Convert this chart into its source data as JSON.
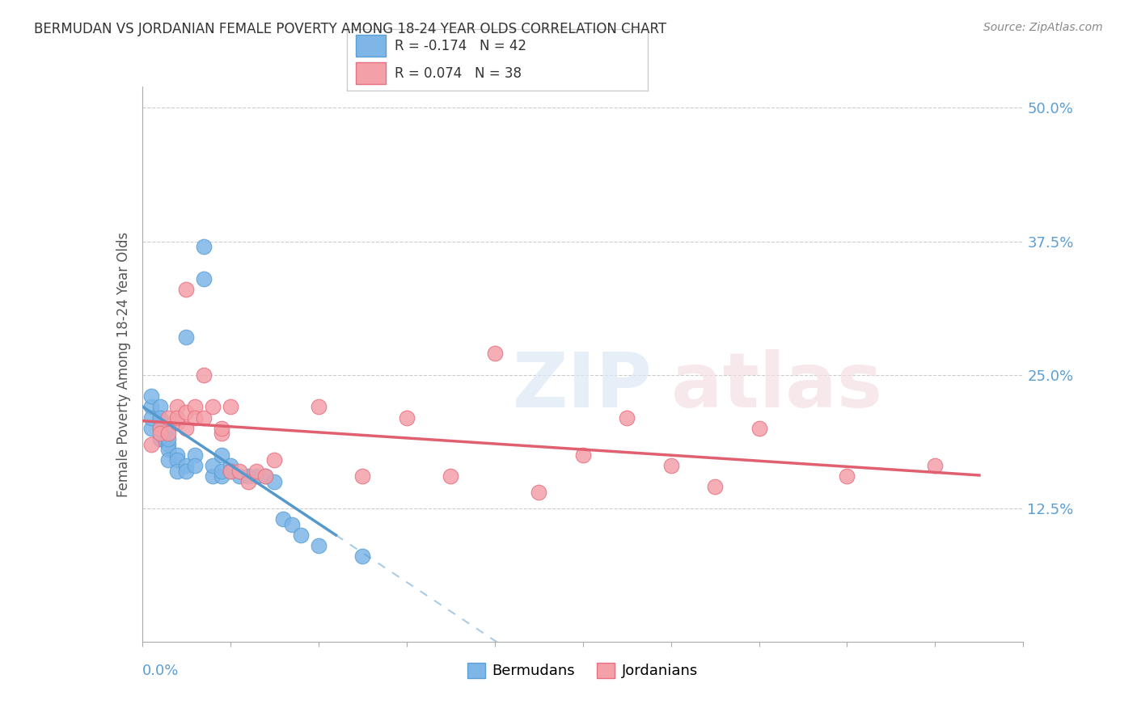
{
  "title": "BERMUDAN VS JORDANIAN FEMALE POVERTY AMONG 18-24 YEAR OLDS CORRELATION CHART",
  "source": "Source: ZipAtlas.com",
  "ylabel": "Female Poverty Among 18-24 Year Olds",
  "legend_blue_r": "R = -0.174",
  "legend_blue_n": "N = 42",
  "legend_pink_r": "R = 0.074",
  "legend_pink_n": "N = 38",
  "blue_label": "Bermudans",
  "pink_label": "Jordanians",
  "blue_color": "#7EB6E8",
  "pink_color": "#F4A0A8",
  "blue_edge": "#5B9FD4",
  "pink_edge": "#E87080",
  "trend_blue_color": "#5599CC",
  "trend_pink_color": "#E06070",
  "blue_x": [
    0.001,
    0.001,
    0.001,
    0.001,
    0.002,
    0.002,
    0.002,
    0.002,
    0.002,
    0.002,
    0.003,
    0.003,
    0.003,
    0.003,
    0.003,
    0.004,
    0.004,
    0.004,
    0.005,
    0.005,
    0.005,
    0.006,
    0.006,
    0.007,
    0.007,
    0.008,
    0.008,
    0.009,
    0.009,
    0.009,
    0.01,
    0.01,
    0.011,
    0.012,
    0.013,
    0.014,
    0.015,
    0.016,
    0.017,
    0.018,
    0.02,
    0.025
  ],
  "blue_y": [
    0.2,
    0.22,
    0.21,
    0.23,
    0.19,
    0.21,
    0.22,
    0.2,
    0.19,
    0.21,
    0.2,
    0.185,
    0.18,
    0.19,
    0.17,
    0.175,
    0.17,
    0.16,
    0.165,
    0.16,
    0.285,
    0.175,
    0.165,
    0.37,
    0.34,
    0.155,
    0.165,
    0.155,
    0.175,
    0.16,
    0.165,
    0.16,
    0.155,
    0.155,
    0.155,
    0.155,
    0.15,
    0.115,
    0.11,
    0.1,
    0.09,
    0.08
  ],
  "pink_x": [
    0.001,
    0.002,
    0.002,
    0.003,
    0.003,
    0.004,
    0.004,
    0.004,
    0.005,
    0.005,
    0.005,
    0.006,
    0.006,
    0.007,
    0.007,
    0.008,
    0.009,
    0.009,
    0.01,
    0.01,
    0.011,
    0.012,
    0.013,
    0.014,
    0.015,
    0.02,
    0.025,
    0.03,
    0.035,
    0.04,
    0.045,
    0.05,
    0.055,
    0.06,
    0.065,
    0.07,
    0.08,
    0.09
  ],
  "pink_y": [
    0.185,
    0.2,
    0.195,
    0.195,
    0.21,
    0.205,
    0.22,
    0.21,
    0.215,
    0.2,
    0.33,
    0.22,
    0.21,
    0.21,
    0.25,
    0.22,
    0.195,
    0.2,
    0.22,
    0.16,
    0.16,
    0.15,
    0.16,
    0.155,
    0.17,
    0.22,
    0.155,
    0.21,
    0.155,
    0.27,
    0.14,
    0.175,
    0.21,
    0.165,
    0.145,
    0.2,
    0.155,
    0.165
  ],
  "xlim": [
    0.0,
    0.1
  ],
  "ylim": [
    0.0,
    0.52
  ],
  "background_color": "#FFFFFF",
  "grid_color": "#CCCCCC"
}
